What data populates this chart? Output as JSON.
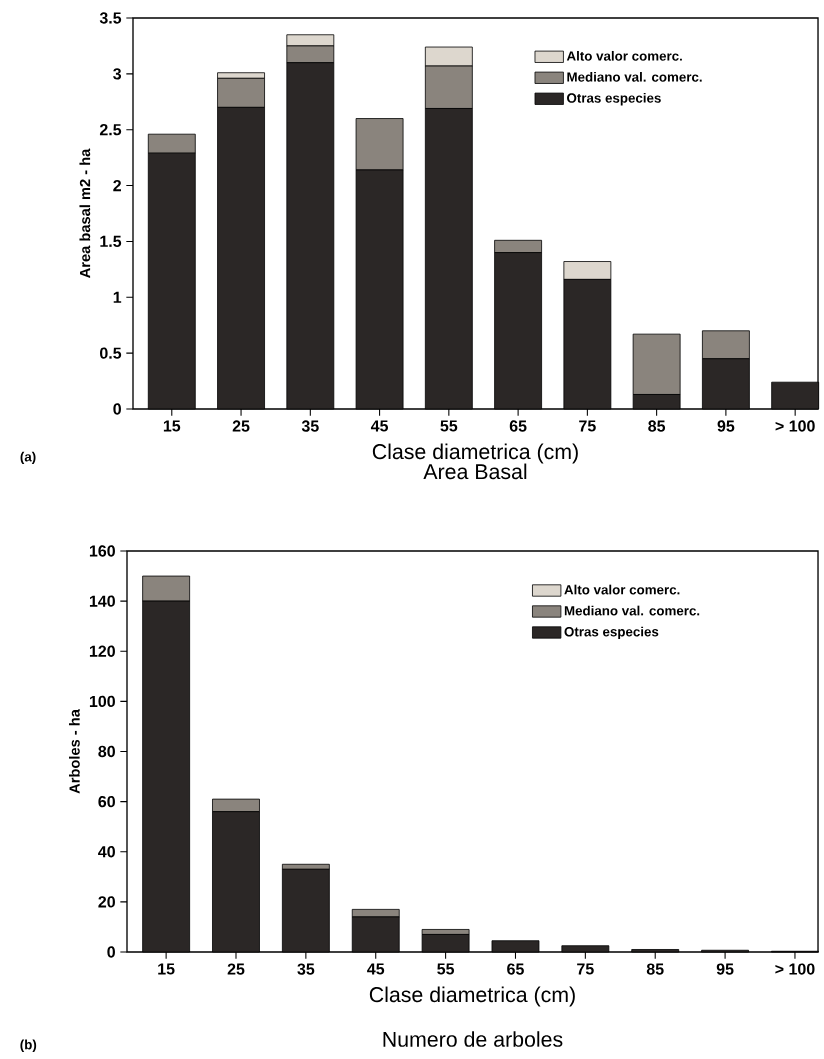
{
  "chart_data": [
    {
      "type": "bar",
      "stacked": true,
      "title": "Area Basal",
      "xlabel": "Clase diametrica (cm)",
      "ylabel": "Area basal m2 - ha",
      "categories": [
        "15",
        "25",
        "35",
        "45",
        "55",
        "65",
        "75",
        "85",
        "95",
        "> 100"
      ],
      "series": [
        {
          "name": "Otras especies",
          "color": "#2b2726",
          "values": [
            2.29,
            2.7,
            3.1,
            2.14,
            2.69,
            1.4,
            1.16,
            0.13,
            0.45,
            0.24
          ]
        },
        {
          "name": "Mediano val. comerc.",
          "color": "#8a847d",
          "values": [
            0.17,
            0.26,
            0.15,
            0.46,
            0.38,
            0.11,
            0,
            0.54,
            0.25,
            0
          ]
        },
        {
          "name": "Alto valor comerc.",
          "color": "#ddd7ce",
          "values": [
            0,
            0.05,
            0.1,
            0,
            0.17,
            0,
            0.16,
            0,
            0,
            0
          ]
        }
      ],
      "ylim": [
        0,
        3.5
      ],
      "yticks": [
        0,
        0.5,
        1,
        1.5,
        2,
        2.5,
        3,
        3.5
      ],
      "legend": "top right",
      "annotations": [
        "(a)"
      ]
    },
    {
      "type": "bar",
      "stacked": true,
      "title": "Numero de arboles",
      "xlabel": "Clase diametrica (cm)",
      "ylabel": "Arboles - ha",
      "categories": [
        "15",
        "25",
        "35",
        "45",
        "55",
        "65",
        "75",
        "85",
        "95",
        "> 100"
      ],
      "series": [
        {
          "name": "Otras especies",
          "color": "#2b2726",
          "values": [
            140,
            56,
            33,
            14,
            7,
            4.5,
            2.5,
            1,
            0.7,
            0.3
          ]
        },
        {
          "name": "Mediano val. comerc.",
          "color": "#8a847d",
          "values": [
            10,
            5,
            2,
            3,
            2,
            0,
            0,
            0,
            0,
            0
          ]
        },
        {
          "name": "Alto valor comerc.",
          "color": "#ddd7ce",
          "values": [
            0,
            0,
            0,
            0,
            0,
            0,
            0,
            0,
            0,
            0
          ]
        }
      ],
      "ylim": [
        0,
        160
      ],
      "yticks": [
        0,
        20,
        40,
        60,
        80,
        100,
        120,
        140,
        160
      ],
      "legend": "top right",
      "annotations": [
        "(b)"
      ]
    }
  ]
}
